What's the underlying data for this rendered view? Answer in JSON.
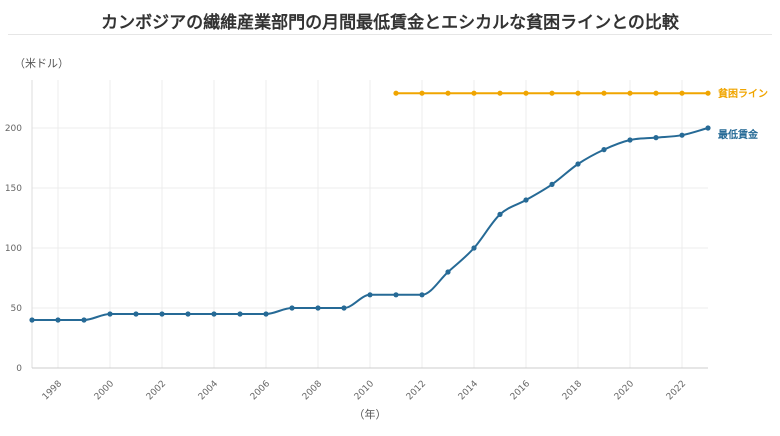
{
  "chart_data": {
    "type": "line",
    "title": "カンボジアの繊維産業部門の月間最低賃金とエシカルな貧困ラインとの比較",
    "ylabel": "（米ドル）",
    "xlabel": "（年）",
    "xlim": [
      1997,
      2023
    ],
    "ylim": [
      0,
      240
    ],
    "yticks": [
      0,
      50,
      100,
      150,
      200
    ],
    "xticks": [
      1998,
      2000,
      2002,
      2004,
      2006,
      2008,
      2010,
      2012,
      2014,
      2016,
      2018,
      2020,
      2022
    ],
    "grid": true,
    "series": [
      {
        "name": "貧困ライン",
        "color": "#f0a500",
        "x": [
          2011,
          2012,
          2013,
          2014,
          2015,
          2016,
          2017,
          2018,
          2019,
          2020,
          2021,
          2022,
          2023
        ],
        "values": [
          229,
          229,
          229,
          229,
          229,
          229,
          229,
          229,
          229,
          229,
          229,
          229,
          229
        ]
      },
      {
        "name": "最低賃金",
        "color": "#266a96",
        "x": [
          1997,
          1998,
          1999,
          2000,
          2001,
          2002,
          2003,
          2004,
          2005,
          2006,
          2007,
          2008,
          2009,
          2010,
          2011,
          2012,
          2013,
          2014,
          2015,
          2016,
          2017,
          2018,
          2019,
          2020,
          2021,
          2022,
          2023
        ],
        "values": [
          40,
          40,
          40,
          45,
          45,
          45,
          45,
          45,
          45,
          45,
          50,
          50,
          50,
          61,
          61,
          61,
          80,
          100,
          128,
          140,
          153,
          170,
          182,
          190,
          192,
          194,
          200
        ]
      }
    ]
  }
}
